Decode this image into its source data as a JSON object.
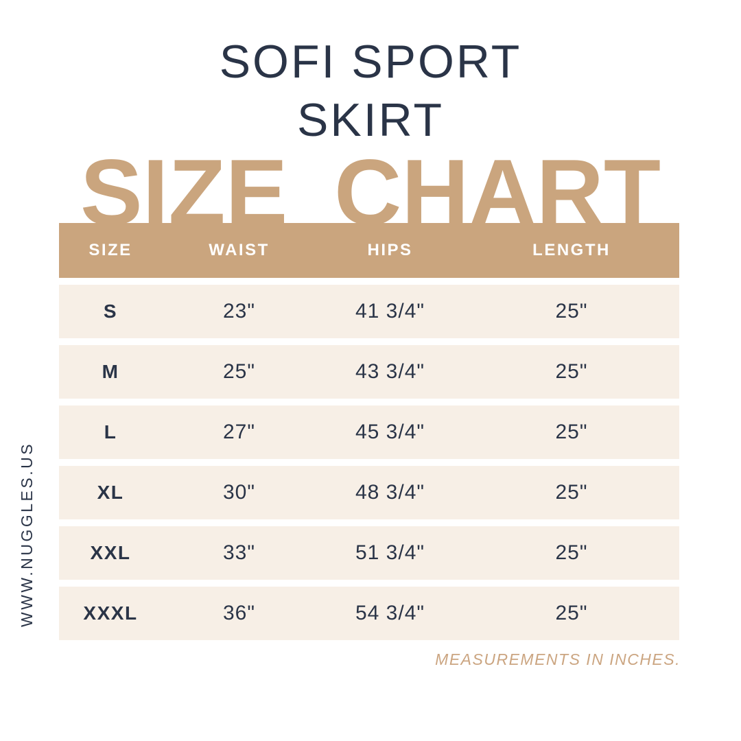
{
  "header": {
    "title_line1": "SOFI SPORT",
    "title_line2": "SKIRT",
    "heading": "SIZE CHART"
  },
  "sidebar": {
    "website": "WWW.NUGGLES.US"
  },
  "footer": {
    "note": "MEASUREMENTS IN INCHES."
  },
  "colors": {
    "tan": "#caa57e",
    "cream": "#f7efe6",
    "navy": "#2a3447",
    "white": "#ffffff"
  },
  "chart_data": {
    "type": "table",
    "title": "SOFI SPORT SKIRT SIZE CHART",
    "units": "inches",
    "columns": [
      "SIZE",
      "WAIST",
      "HIPS",
      "LENGTH"
    ],
    "rows": [
      [
        "S",
        "23\"",
        "41 3/4\"",
        "25\""
      ],
      [
        "M",
        "25\"",
        "43 3/4\"",
        "25\""
      ],
      [
        "L",
        "27\"",
        "45 3/4\"",
        "25\""
      ],
      [
        "XL",
        "30\"",
        "48 3/4\"",
        "25\""
      ],
      [
        "XXL",
        "33\"",
        "51 3/4\"",
        "25\""
      ],
      [
        "XXXL",
        "36\"",
        "54 3/4\"",
        "25\""
      ]
    ]
  }
}
